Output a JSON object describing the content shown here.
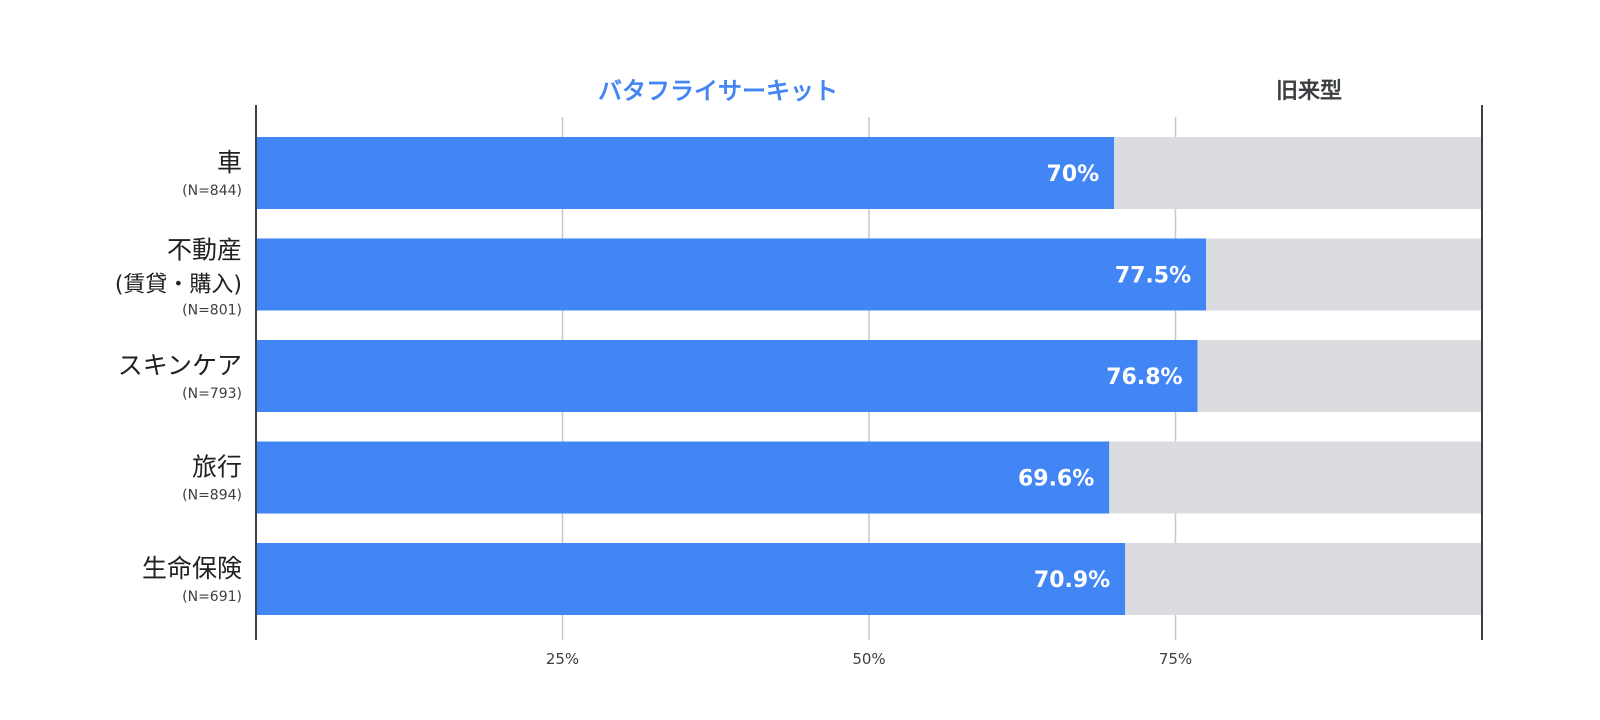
{
  "chart_data": {
    "type": "bar",
    "orientation": "horizontal",
    "stacked": true,
    "percent_scale": true,
    "xlim": [
      0,
      100
    ],
    "xticks": [
      25,
      50,
      75
    ],
    "xtick_labels": [
      "25%",
      "50%",
      "75%"
    ],
    "grid": true,
    "legend_placement": "top",
    "categories": [
      {
        "label": "車",
        "sub": "",
        "n": "(N=844)"
      },
      {
        "label": "不動産",
        "sub": "(賃貸・購入)",
        "n": "(N=801)"
      },
      {
        "label": "スキンケア",
        "sub": "",
        "n": "(N=793)"
      },
      {
        "label": "旅行",
        "sub": "",
        "n": "(N=894)"
      },
      {
        "label": "生命保険",
        "sub": "",
        "n": "(N=691)"
      }
    ],
    "series": [
      {
        "name": "バタフライサーキット",
        "color": "#4285f4",
        "values": [
          70,
          77.5,
          76.8,
          69.6,
          70.9
        ],
        "data_labels": [
          "70%",
          "77.5%",
          "76.8%",
          "69.6%",
          "70.9%"
        ]
      },
      {
        "name": "旧来型",
        "color": "#dadce0",
        "values": [
          30,
          22.5,
          23.2,
          30.4,
          29.1
        ]
      }
    ],
    "legend_text_colors": [
      "#4285f4",
      "#3c4043"
    ]
  }
}
